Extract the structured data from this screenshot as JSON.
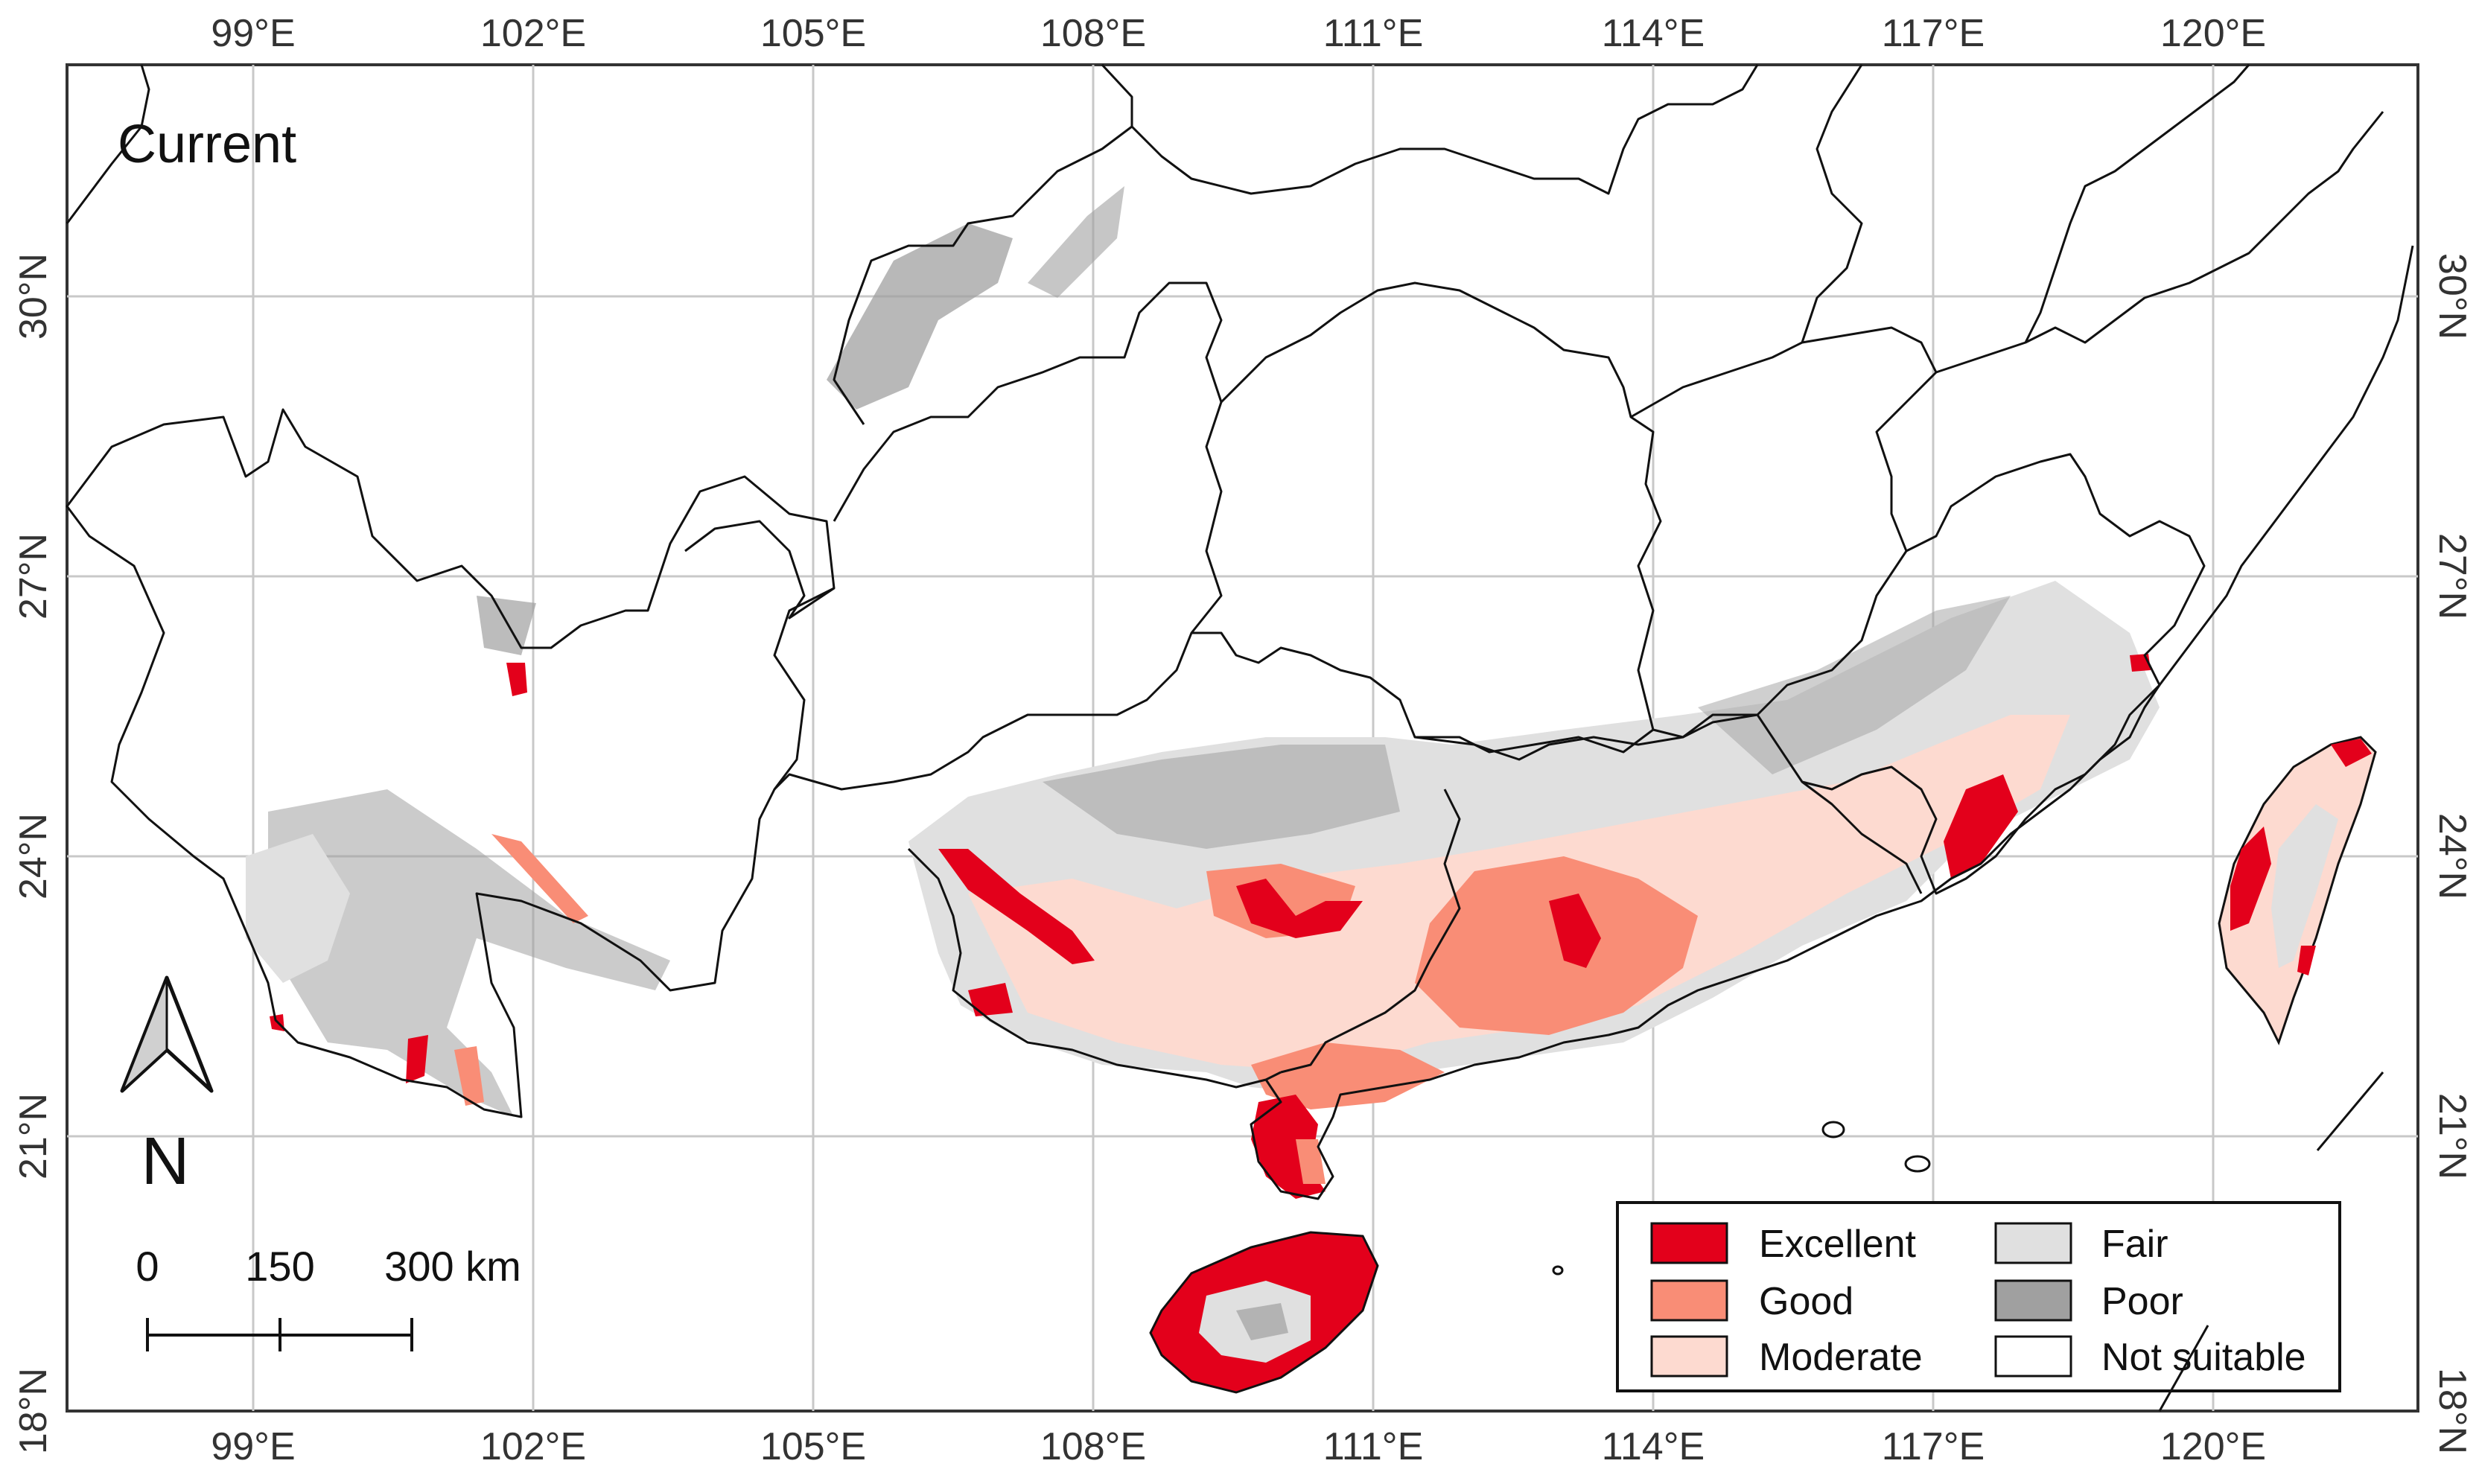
{
  "panel_label": "Current",
  "axes": {
    "lon_ticks": [
      "99°E",
      "102°E",
      "105°E",
      "108°E",
      "111°E",
      "114°E",
      "117°E",
      "120°E"
    ],
    "lat_ticks": [
      "18°N",
      "21°N",
      "24°N",
      "27°N",
      "30°N"
    ],
    "lon_range": [
      97,
      122.5
    ],
    "lat_range": [
      17.8,
      32.5
    ]
  },
  "north_arrow": {
    "label": "N"
  },
  "scale_bar": {
    "labels": [
      "0",
      "150",
      "300 km"
    ]
  },
  "legend": {
    "items": [
      {
        "label": "Excellent",
        "color": "#e3001b"
      },
      {
        "label": "Good",
        "color": "#f98d76"
      },
      {
        "label": "Moderate",
        "color": "#fddad0"
      },
      {
        "label": "Fair",
        "color": "#e0e0e0"
      },
      {
        "label": "Poor",
        "color": "#a0a0a0"
      },
      {
        "label": "Not suitable",
        "color": "#ffffff"
      }
    ]
  }
}
